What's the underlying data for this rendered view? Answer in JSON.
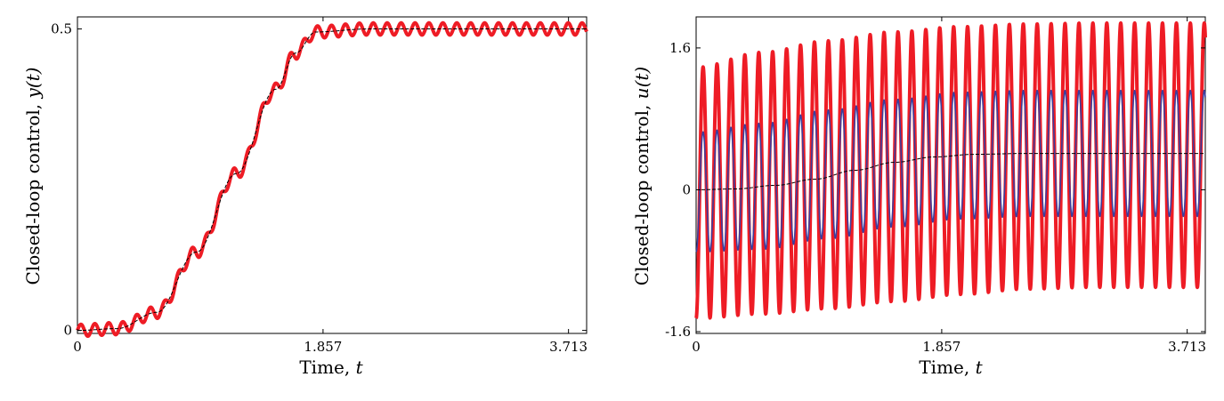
{
  "chart_data": [
    {
      "type": "line",
      "xlabel": "Time, ",
      "xlabel_var": "t",
      "ylabel": "Closed-loop control, ",
      "ylabel_var": "y(t)",
      "xlim": [
        0,
        3.85
      ],
      "ylim": [
        -0.005,
        0.52
      ],
      "xticks": [
        "0",
        "1.857",
        "3.713"
      ],
      "xtick_values": [
        0,
        1.857,
        3.713
      ],
      "yticks": [
        "0",
        "0.5"
      ],
      "ytick_values": [
        0,
        0.5
      ],
      "grid": false,
      "series": [
        {
          "color": "#000000",
          "style": "dashed",
          "x": [
            0,
            0.3,
            0.6,
            0.9,
            1.2,
            1.5,
            1.65,
            1.8,
            2.2,
            3.85
          ],
          "y": [
            0,
            0.003,
            0.03,
            0.13,
            0.26,
            0.4,
            0.46,
            0.495,
            0.5,
            0.5
          ]
        },
        {
          "color": "#ee1c25",
          "style": "solid",
          "oscillation": {
            "amplitude": 0.01,
            "cycles_per_unit": 9.5
          },
          "x": [
            0,
            0.3,
            0.6,
            0.9,
            1.2,
            1.5,
            1.65,
            1.8,
            2.2,
            3.85
          ],
          "y": [
            0,
            0.003,
            0.03,
            0.13,
            0.26,
            0.4,
            0.46,
            0.495,
            0.5,
            0.5
          ]
        }
      ]
    },
    {
      "type": "line",
      "xlabel": "Time, ",
      "xlabel_var": "t",
      "ylabel": "Closed-loop control, ",
      "ylabel_var": "u(t)",
      "xlim": [
        0,
        3.85
      ],
      "ylim": [
        -1.62,
        1.95
      ],
      "xticks": [
        "0",
        "1.857",
        "3.713"
      ],
      "xtick_values": [
        0,
        1.857,
        3.713
      ],
      "yticks": [
        "-1.6",
        "0",
        "1.6"
      ],
      "ytick_values": [
        -1.6,
        0,
        1.6
      ],
      "grid": false,
      "series": [
        {
          "color": "#ee1c25",
          "style": "solid",
          "oscillation": {
            "cycles_per_unit": 9.5
          },
          "x": [
            0,
            0.5,
            1.0,
            1.5,
            2.0,
            2.5,
            3.0,
            3.85
          ],
          "upper": [
            1.38,
            1.55,
            1.68,
            1.78,
            1.84,
            1.87,
            1.88,
            1.88
          ],
          "lower": [
            -1.45,
            -1.4,
            -1.34,
            -1.26,
            -1.18,
            -1.12,
            -1.1,
            -1.1
          ]
        },
        {
          "color": "#3b3f9e",
          "style": "solid",
          "oscillation": {
            "cycles_per_unit": 9.5
          },
          "x": [
            0,
            0.5,
            1.0,
            1.5,
            2.0,
            2.5,
            3.0,
            3.85
          ],
          "upper": [
            0.65,
            0.75,
            0.9,
            1.02,
            1.1,
            1.12,
            1.12,
            1.12
          ],
          "lower": [
            -0.7,
            -0.67,
            -0.55,
            -0.42,
            -0.33,
            -0.3,
            -0.3,
            -0.3
          ]
        },
        {
          "color": "#000000",
          "style": "dashed",
          "x": [
            0,
            0.3,
            0.6,
            0.9,
            1.2,
            1.5,
            1.8,
            2.1,
            2.5,
            3.85
          ],
          "y": [
            0,
            0.01,
            0.05,
            0.12,
            0.22,
            0.31,
            0.37,
            0.4,
            0.41,
            0.41
          ]
        }
      ]
    }
  ]
}
